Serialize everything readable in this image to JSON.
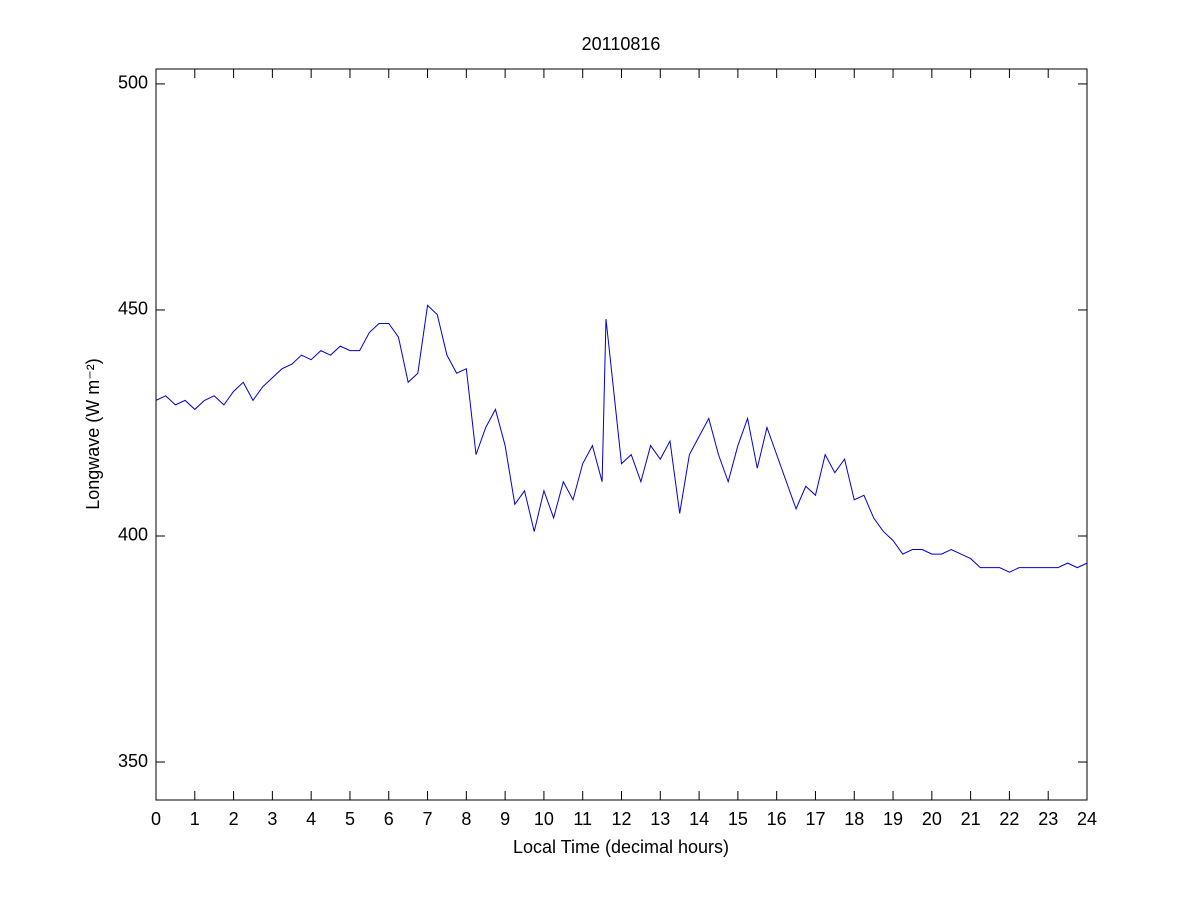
{
  "chart_data": {
    "type": "line",
    "title": "20110816",
    "x_label": "Local Time (decimal hours)",
    "y_label": "Longwave (W m⁻²)",
    "xlim": [
      0,
      24
    ],
    "xticks": [
      0,
      1,
      2,
      3,
      4,
      5,
      6,
      7,
      8,
      9,
      10,
      11,
      12,
      13,
      14,
      15,
      16,
      17,
      18,
      19,
      20,
      21,
      22,
      23,
      24
    ],
    "ylim": [
      341.6,
      503.3
    ],
    "yticks": [
      350,
      400,
      450,
      500
    ],
    "grid": false,
    "series": [
      {
        "color": "#0000cc",
        "x": [
          0,
          0.25,
          0.5,
          0.75,
          1,
          1.25,
          1.5,
          1.75,
          2,
          2.25,
          2.5,
          2.75,
          3,
          3.25,
          3.5,
          3.75,
          4,
          4.25,
          4.5,
          4.75,
          5,
          5.25,
          5.5,
          5.75,
          6,
          6.25,
          6.5,
          6.75,
          7,
          7.25,
          7.5,
          7.75,
          8,
          8.25,
          8.5,
          8.75,
          9,
          9.25,
          9.5,
          9.75,
          10,
          10.25,
          10.5,
          10.75,
          11,
          11.25,
          11.5,
          11.6,
          11.75,
          12,
          12.25,
          12.5,
          12.75,
          13,
          13.25,
          13.5,
          13.75,
          14,
          14.25,
          14.5,
          14.75,
          15,
          15.25,
          15.5,
          15.75,
          16,
          16.25,
          16.5,
          16.75,
          17,
          17.25,
          17.5,
          17.75,
          18,
          18.25,
          18.5,
          18.75,
          19,
          19.25,
          19.5,
          19.75,
          20,
          20.25,
          20.5,
          20.75,
          21,
          21.25,
          21.5,
          21.75,
          22,
          22.25,
          22.5,
          22.75,
          23,
          23.25,
          23.5,
          23.75,
          24
        ],
        "values": [
          430,
          431,
          429,
          430,
          428,
          430,
          431,
          429,
          432,
          434,
          430,
          433,
          435,
          437,
          438,
          440,
          439,
          441,
          440,
          442,
          441,
          441,
          445,
          447,
          447,
          444,
          434,
          436,
          451,
          449,
          440,
          436,
          437,
          418,
          424,
          428,
          420,
          407,
          410,
          401,
          410,
          404,
          412,
          408,
          416,
          420,
          412,
          448,
          436,
          416,
          418,
          412,
          420,
          417,
          421,
          405,
          418,
          422,
          426,
          418,
          412,
          420,
          426,
          415,
          424,
          418,
          412,
          406,
          411,
          409,
          418,
          414,
          417,
          408,
          409,
          404,
          401,
          399,
          396,
          397,
          397,
          396,
          396,
          397,
          396,
          395,
          393,
          393,
          393,
          392,
          393,
          393,
          393,
          393,
          393,
          394,
          393,
          394
        ]
      }
    ]
  }
}
